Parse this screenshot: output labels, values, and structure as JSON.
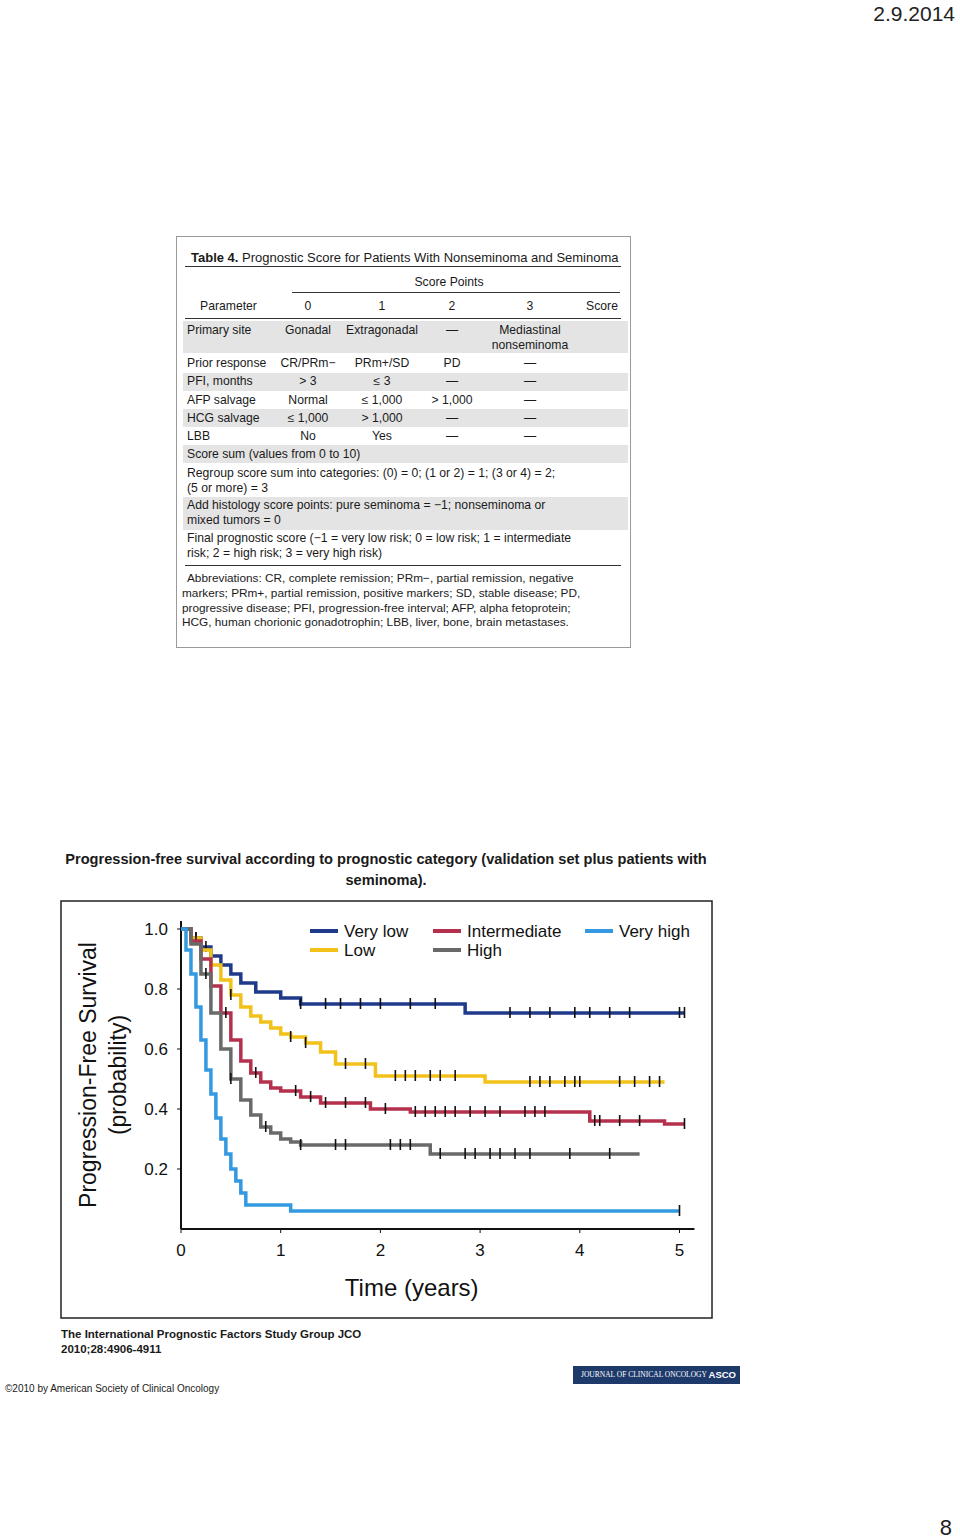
{
  "page": {
    "date": "2.9.2014",
    "number": "8"
  },
  "table": {
    "title_label": "Table 4.",
    "title": "Prognostic Score for Patients With Nonseminoma and Seminoma",
    "group_header": "Score Points",
    "columns": [
      "Parameter",
      "0",
      "1",
      "2",
      "3",
      "Score"
    ],
    "rows": [
      [
        "Primary site",
        "Gonadal",
        "Extragonadal",
        "—",
        "Mediastinal nonseminoma"
      ],
      [
        "Prior response",
        "CR/PRm−",
        "PRm+/SD",
        "PD",
        "—"
      ],
      [
        "PFI, months",
        "> 3",
        "≤ 3",
        "—",
        "—"
      ],
      [
        "AFP salvage",
        "Normal",
        "≤ 1,000",
        "> 1,000",
        "—"
      ],
      [
        "HCG salvage",
        "≤ 1,000",
        "> 1,000",
        "—",
        "—"
      ],
      [
        "LBB",
        "No",
        "Yes",
        "—",
        "—"
      ]
    ],
    "notes": [
      [
        "Score sum (values from 0 to 10)"
      ],
      [
        "Regroup score sum into categories: (0) = 0; (1 or 2) = 1; (3 or 4) = 2;",
        "(5 or more) = 3"
      ],
      [
        "Add histology score points: pure seminoma = −1; nonseminoma or",
        "mixed tumors = 0"
      ],
      [
        "Final prognostic score (−1 = very low risk; 0 = low risk; 1 = intermediate",
        "risk; 2 = high risk; 3 = very high risk)"
      ]
    ],
    "abbreviations": [
      "Abbreviations: CR, complete remission; PRm−, partial remission, negative",
      "markers; PRm+, partial remission, positive markers; SD, stable disease; PD,",
      "progressive disease; PFI, progression-free interval; AFP, alpha fetoprotein;",
      "HCG, human chorionic gonadotrophin; LBB, liver, bone, brain metastases."
    ]
  },
  "chart_data": {
    "type": "step",
    "title": [
      "Progression-free survival according to prognostic category (validation set plus patients with",
      "seminoma)."
    ],
    "xlabel": "Time (years)",
    "ylabel": [
      "Progression-Free Survival",
      "(probability)"
    ],
    "xlim": [
      0,
      5.15
    ],
    "ylim": [
      0,
      1
    ],
    "xticks": [
      0,
      1,
      2,
      3,
      4,
      5
    ],
    "yticks": [
      0.2,
      0.4,
      0.6,
      0.8,
      {
        "value": 1,
        "label": "1.0"
      }
    ],
    "grid": false,
    "legend": "top-right",
    "series": [
      {
        "name": "Very low",
        "color": "#1f3a8a",
        "x": [
          0,
          0.1,
          0.2,
          0.3,
          0.4,
          0.5,
          0.6,
          0.75,
          1.0,
          1.2,
          2.85,
          5.05
        ],
        "values": [
          1,
          0.97,
          0.94,
          0.91,
          0.88,
          0.85,
          0.82,
          0.79,
          0.77,
          0.75,
          0.72,
          0.72
        ],
        "censored": [
          0.15,
          0.25,
          1.2,
          1.45,
          1.6,
          1.8,
          2.0,
          2.3,
          2.55,
          3.3,
          3.5,
          3.7,
          3.95,
          4.1,
          4.3,
          4.5,
          5.0,
          5.05
        ]
      },
      {
        "name": "Low",
        "color": "#f2c21b",
        "x": [
          0,
          0.1,
          0.2,
          0.3,
          0.4,
          0.5,
          0.6,
          0.7,
          0.8,
          0.9,
          1.0,
          1.1,
          1.25,
          1.4,
          1.55,
          1.95,
          3.05,
          4.85
        ],
        "values": [
          1,
          0.97,
          0.93,
          0.88,
          0.83,
          0.78,
          0.74,
          0.71,
          0.69,
          0.67,
          0.65,
          0.64,
          0.62,
          0.59,
          0.55,
          0.51,
          0.49,
          0.49
        ],
        "censored": [
          0.15,
          0.5,
          1.1,
          1.25,
          1.65,
          1.85,
          2.15,
          2.25,
          2.35,
          2.5,
          2.6,
          2.75,
          3.5,
          3.6,
          3.7,
          3.85,
          3.95,
          4.0,
          4.4,
          4.55,
          4.7,
          4.8
        ]
      },
      {
        "name": "Intermediate",
        "color": "#b5304d",
        "x": [
          0,
          0.1,
          0.2,
          0.3,
          0.4,
          0.5,
          0.6,
          0.7,
          0.8,
          0.9,
          1.0,
          1.2,
          1.4,
          1.9,
          2.3,
          4.1,
          4.85,
          5.05
        ],
        "values": [
          1,
          0.96,
          0.9,
          0.81,
          0.72,
          0.63,
          0.56,
          0.52,
          0.49,
          0.47,
          0.46,
          0.44,
          0.42,
          0.4,
          0.39,
          0.36,
          0.35,
          0.35
        ],
        "censored": [
          0.2,
          0.45,
          0.75,
          1.15,
          1.3,
          1.45,
          1.65,
          1.85,
          2.05,
          2.35,
          2.45,
          2.55,
          2.65,
          2.75,
          2.9,
          3.05,
          3.2,
          3.45,
          3.55,
          3.65,
          4.15,
          4.2,
          4.4,
          4.6,
          5.05
        ]
      },
      {
        "name": "High",
        "color": "#696969",
        "x": [
          0,
          0.1,
          0.2,
          0.3,
          0.4,
          0.5,
          0.6,
          0.7,
          0.8,
          0.9,
          1.0,
          1.1,
          1.2,
          2.5,
          4.6
        ],
        "values": [
          1,
          0.95,
          0.85,
          0.72,
          0.6,
          0.5,
          0.43,
          0.38,
          0.34,
          0.32,
          0.3,
          0.29,
          0.28,
          0.25,
          0.25
        ],
        "censored": [
          0.25,
          0.5,
          0.85,
          1.2,
          1.55,
          1.65,
          2.1,
          2.2,
          2.3,
          2.6,
          2.85,
          2.95,
          3.1,
          3.2,
          3.35,
          3.5,
          3.9,
          4.3
        ]
      },
      {
        "name": "Very high",
        "color": "#3399e0",
        "x": [
          0,
          0.05,
          0.1,
          0.15,
          0.2,
          0.25,
          0.3,
          0.35,
          0.4,
          0.45,
          0.5,
          0.55,
          0.6,
          0.65,
          1.1,
          5.0
        ],
        "values": [
          1,
          0.93,
          0.85,
          0.74,
          0.63,
          0.53,
          0.45,
          0.37,
          0.3,
          0.25,
          0.2,
          0.16,
          0.12,
          0.08,
          0.06,
          0.06
        ],
        "censored": [
          5.0
        ]
      }
    ]
  },
  "citation": [
    "The International Prognostic Factors Study Group JCO",
    "2010;28:4906-4911"
  ],
  "copyright": "©2010 by American Society of Clinical Oncology",
  "logo": {
    "journal": "JOURNAL OF CLINICAL ONCOLOGY",
    "society": "ASCO"
  }
}
